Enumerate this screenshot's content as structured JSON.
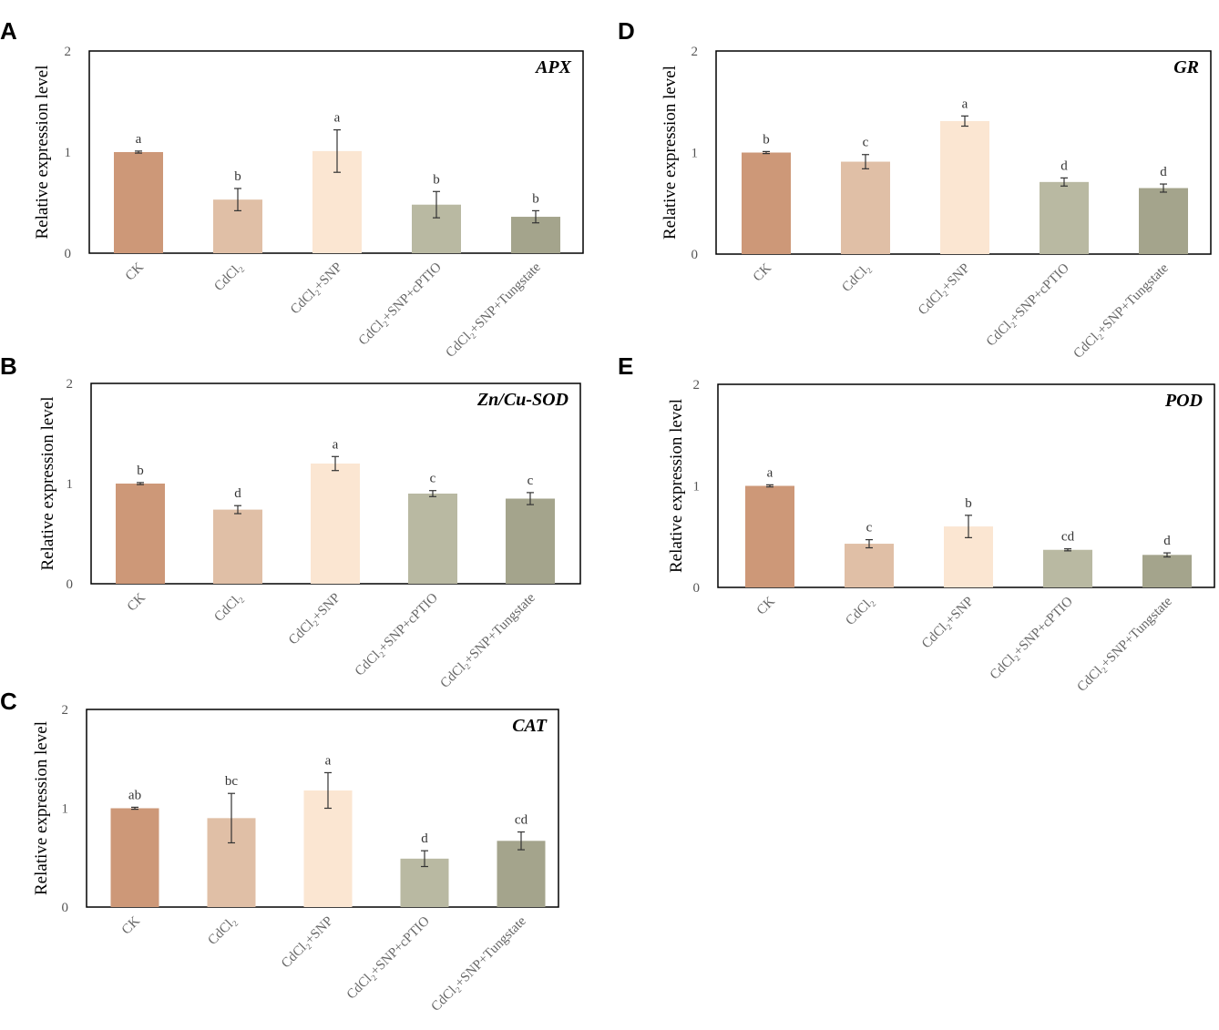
{
  "colors": [
    "#cd9878",
    "#e0bfa6",
    "#fbe6d2",
    "#b9b9a2",
    "#a4a48c"
  ],
  "categories": [
    "CK",
    "CdCl₂",
    "CdCl₂+SNP",
    "CdCl₂+SNP+cPTIO",
    "CdCl₂+SNP+Tungstate"
  ],
  "chart_data": [
    {
      "panel": "A",
      "type": "bar",
      "title": "APX",
      "ylabel": "Relative expression level",
      "ylim": [
        0,
        2
      ],
      "yticks": [
        "0",
        "1",
        "2"
      ],
      "values": [
        1.0,
        0.53,
        1.01,
        0.48,
        0.36
      ],
      "errors": [
        0.01,
        0.11,
        0.21,
        0.13,
        0.06
      ],
      "letters": [
        "a",
        "b",
        "a",
        "b",
        "b"
      ]
    },
    {
      "panel": "B",
      "type": "bar",
      "title": "Zn/Cu-SOD",
      "ylabel": "Relative expression level",
      "ylim": [
        0,
        2
      ],
      "yticks": [
        "0",
        "1",
        "2"
      ],
      "values": [
        1.0,
        0.74,
        1.2,
        0.9,
        0.85
      ],
      "errors": [
        0.01,
        0.04,
        0.07,
        0.03,
        0.06
      ],
      "letters": [
        "b",
        "d",
        "a",
        "c",
        "c"
      ]
    },
    {
      "panel": "C",
      "type": "bar",
      "title": "CAT",
      "ylabel": "Relative expression level",
      "ylim": [
        0,
        2
      ],
      "yticks": [
        "0",
        "1",
        "2"
      ],
      "values": [
        1.0,
        0.9,
        1.18,
        0.49,
        0.67
      ],
      "errors": [
        0.01,
        0.25,
        0.18,
        0.08,
        0.09
      ],
      "letters": [
        "ab",
        "bc",
        "a",
        "d",
        "cd"
      ]
    },
    {
      "panel": "D",
      "type": "bar",
      "title": "GR",
      "ylabel": "Relative expression level",
      "ylim": [
        0,
        2
      ],
      "yticks": [
        "0",
        "1",
        "2"
      ],
      "values": [
        1.0,
        0.91,
        1.31,
        0.71,
        0.65
      ],
      "errors": [
        0.01,
        0.07,
        0.05,
        0.04,
        0.04
      ],
      "letters": [
        "b",
        "c",
        "a",
        "d",
        "d"
      ]
    },
    {
      "panel": "E",
      "type": "bar",
      "title": "POD",
      "ylabel": "Relative expression level",
      "ylim": [
        0,
        2
      ],
      "yticks": [
        "0",
        "1",
        "2"
      ],
      "values": [
        1.0,
        0.43,
        0.6,
        0.37,
        0.32
      ],
      "errors": [
        0.01,
        0.04,
        0.11,
        0.01,
        0.02
      ],
      "letters": [
        "a",
        "c",
        "b",
        "cd",
        "d"
      ]
    }
  ]
}
